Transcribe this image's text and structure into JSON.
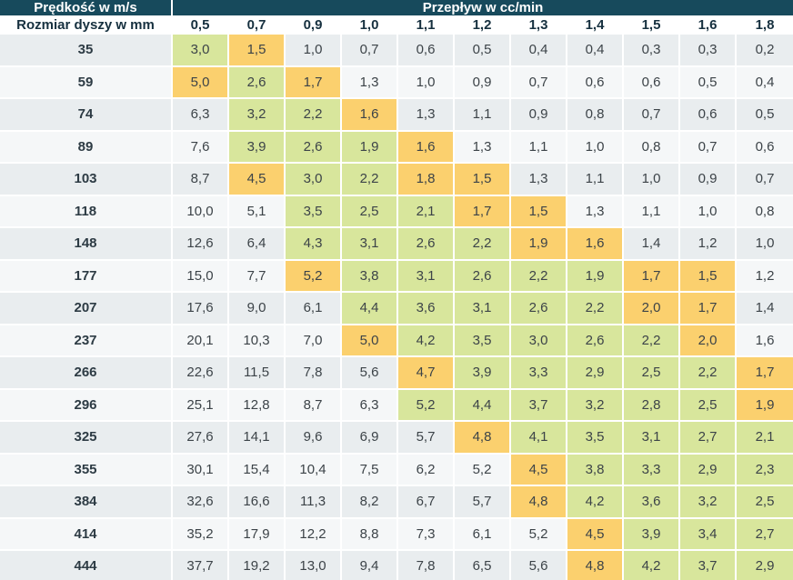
{
  "colors": {
    "header_bg": "#174a5c",
    "header_text": "#ffffff",
    "col_header_text": "#16303f",
    "data_text": "#3c4348",
    "stripe_a": "#e9edef",
    "stripe_b": "#f5f7f8",
    "green": "#d8e69c",
    "orange": "#fbd06e"
  },
  "chart_data": {
    "type": "table",
    "title_left": "Prędkość w m/s",
    "title_right": "Przepływ w cc/min",
    "row_header_label": "Rozmiar dyszy w mm",
    "columns": [
      "0,5",
      "0,7",
      "0,9",
      "1,0",
      "1,1",
      "1,2",
      "1,3",
      "1,4",
      "1,5",
      "1,6",
      "1,8"
    ],
    "highlight_colors": {
      "green": "#d8e69c",
      "orange": "#fbd06e"
    },
    "rows": [
      {
        "label": "35",
        "values": [
          "3,0",
          "1,5",
          "1,0",
          "0,7",
          "0,6",
          "0,5",
          "0,4",
          "0,4",
          "0,3",
          "0,3",
          "0,2"
        ],
        "highlight": [
          "green",
          "orange",
          "",
          "",
          "",
          "",
          "",
          "",
          "",
          "",
          ""
        ]
      },
      {
        "label": "59",
        "values": [
          "5,0",
          "2,6",
          "1,7",
          "1,3",
          "1,0",
          "0,9",
          "0,7",
          "0,6",
          "0,6",
          "0,5",
          "0,4"
        ],
        "highlight": [
          "orange",
          "green",
          "orange",
          "",
          "",
          "",
          "",
          "",
          "",
          "",
          ""
        ]
      },
      {
        "label": "74",
        "values": [
          "6,3",
          "3,2",
          "2,2",
          "1,6",
          "1,3",
          "1,1",
          "0,9",
          "0,8",
          "0,7",
          "0,6",
          "0,5"
        ],
        "highlight": [
          "",
          "green",
          "green",
          "orange",
          "",
          "",
          "",
          "",
          "",
          "",
          ""
        ]
      },
      {
        "label": "89",
        "values": [
          "7,6",
          "3,9",
          "2,6",
          "1,9",
          "1,6",
          "1,3",
          "1,1",
          "1,0",
          "0,8",
          "0,7",
          "0,6"
        ],
        "highlight": [
          "",
          "green",
          "green",
          "green",
          "orange",
          "",
          "",
          "",
          "",
          "",
          ""
        ]
      },
      {
        "label": "103",
        "values": [
          "8,7",
          "4,5",
          "3,0",
          "2,2",
          "1,8",
          "1,5",
          "1,3",
          "1,1",
          "1,0",
          "0,9",
          "0,7"
        ],
        "highlight": [
          "",
          "orange",
          "green",
          "green",
          "orange",
          "orange",
          "",
          "",
          "",
          "",
          ""
        ]
      },
      {
        "label": "118",
        "values": [
          "10,0",
          "5,1",
          "3,5",
          "2,5",
          "2,1",
          "1,7",
          "1,5",
          "1,3",
          "1,1",
          "1,0",
          "0,8"
        ],
        "highlight": [
          "",
          "",
          "green",
          "green",
          "green",
          "orange",
          "orange",
          "",
          "",
          "",
          ""
        ]
      },
      {
        "label": "148",
        "values": [
          "12,6",
          "6,4",
          "4,3",
          "3,1",
          "2,6",
          "2,2",
          "1,9",
          "1,6",
          "1,4",
          "1,2",
          "1,0"
        ],
        "highlight": [
          "",
          "",
          "green",
          "green",
          "green",
          "green",
          "orange",
          "orange",
          "",
          "",
          ""
        ]
      },
      {
        "label": "177",
        "values": [
          "15,0",
          "7,7",
          "5,2",
          "3,8",
          "3,1",
          "2,6",
          "2,2",
          "1,9",
          "1,7",
          "1,5",
          "1,2"
        ],
        "highlight": [
          "",
          "",
          "orange",
          "green",
          "green",
          "green",
          "green",
          "green",
          "orange",
          "orange",
          ""
        ]
      },
      {
        "label": "207",
        "values": [
          "17,6",
          "9,0",
          "6,1",
          "4,4",
          "3,6",
          "3,1",
          "2,6",
          "2,2",
          "2,0",
          "1,7",
          "1,4"
        ],
        "highlight": [
          "",
          "",
          "",
          "green",
          "green",
          "green",
          "green",
          "green",
          "orange",
          "orange",
          ""
        ]
      },
      {
        "label": "237",
        "values": [
          "20,1",
          "10,3",
          "7,0",
          "5,0",
          "4,2",
          "3,5",
          "3,0",
          "2,6",
          "2,2",
          "2,0",
          "1,6"
        ],
        "highlight": [
          "",
          "",
          "",
          "orange",
          "green",
          "green",
          "green",
          "green",
          "green",
          "orange",
          ""
        ]
      },
      {
        "label": "266",
        "values": [
          "22,6",
          "11,5",
          "7,8",
          "5,6",
          "4,7",
          "3,9",
          "3,3",
          "2,9",
          "2,5",
          "2,2",
          "1,7"
        ],
        "highlight": [
          "",
          "",
          "",
          "",
          "orange",
          "green",
          "green",
          "green",
          "green",
          "green",
          "orange"
        ]
      },
      {
        "label": "296",
        "values": [
          "25,1",
          "12,8",
          "8,7",
          "6,3",
          "5,2",
          "4,4",
          "3,7",
          "3,2",
          "2,8",
          "2,5",
          "1,9"
        ],
        "highlight": [
          "",
          "",
          "",
          "",
          "green",
          "green",
          "green",
          "green",
          "green",
          "green",
          "orange"
        ]
      },
      {
        "label": "325",
        "values": [
          "27,6",
          "14,1",
          "9,6",
          "6,9",
          "5,7",
          "4,8",
          "4,1",
          "3,5",
          "3,1",
          "2,7",
          "2,1"
        ],
        "highlight": [
          "",
          "",
          "",
          "",
          "",
          "orange",
          "green",
          "green",
          "green",
          "green",
          "green"
        ]
      },
      {
        "label": "355",
        "values": [
          "30,1",
          "15,4",
          "10,4",
          "7,5",
          "6,2",
          "5,2",
          "4,5",
          "3,8",
          "3,3",
          "2,9",
          "2,3"
        ],
        "highlight": [
          "",
          "",
          "",
          "",
          "",
          "",
          "orange",
          "green",
          "green",
          "green",
          "green"
        ]
      },
      {
        "label": "384",
        "values": [
          "32,6",
          "16,6",
          "11,3",
          "8,2",
          "6,7",
          "5,7",
          "4,8",
          "4,2",
          "3,6",
          "3,2",
          "2,5"
        ],
        "highlight": [
          "",
          "",
          "",
          "",
          "",
          "",
          "orange",
          "green",
          "green",
          "green",
          "green"
        ]
      },
      {
        "label": "414",
        "values": [
          "35,2",
          "17,9",
          "12,2",
          "8,8",
          "7,3",
          "6,1",
          "5,2",
          "4,5",
          "3,9",
          "3,4",
          "2,7"
        ],
        "highlight": [
          "",
          "",
          "",
          "",
          "",
          "",
          "",
          "orange",
          "green",
          "green",
          "green"
        ]
      },
      {
        "label": "444",
        "values": [
          "37,7",
          "19,2",
          "13,0",
          "9,4",
          "7,8",
          "6,5",
          "5,6",
          "4,8",
          "4,2",
          "3,7",
          "2,9"
        ],
        "highlight": [
          "",
          "",
          "",
          "",
          "",
          "",
          "",
          "orange",
          "green",
          "green",
          "green"
        ]
      }
    ]
  }
}
